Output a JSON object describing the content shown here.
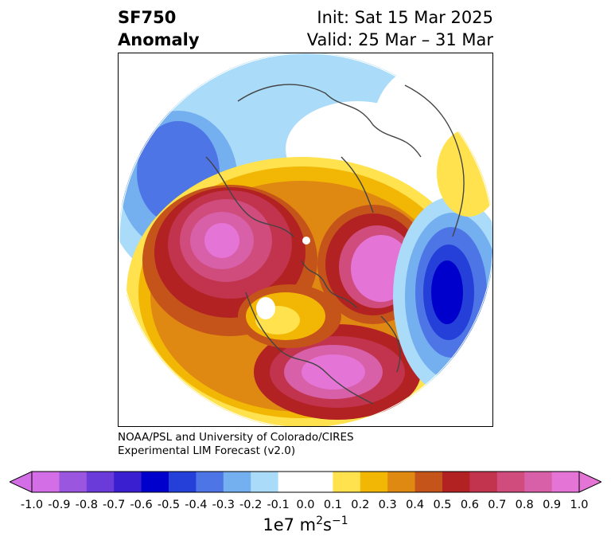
{
  "title": {
    "left_line1": "SF750",
    "left_line2": "Anomaly",
    "right_line1": "Init: Sat 15 Mar 2025",
    "right_line2": "Valid: 25 Mar – 31 Mar"
  },
  "credit": {
    "line1": "NOAA/PSL and University of Colorado/CIRES",
    "line2": "Experimental LIM Forecast (v2.0)"
  },
  "colorbar": {
    "ticks": [
      "-1.0",
      "-0.9",
      "-0.8",
      "-0.7",
      "-0.6",
      "-0.5",
      "-0.4",
      "-0.3",
      "-0.2",
      "-0.1",
      "0.0",
      "0.1",
      "0.2",
      "0.3",
      "0.4",
      "0.5",
      "0.6",
      "0.7",
      "0.8",
      "0.9",
      "1.0"
    ],
    "colors": [
      "#d36ee6",
      "#9b56e0",
      "#6a3bd8",
      "#3a1fd0",
      "#0000cc",
      "#2440d8",
      "#4e75e6",
      "#74aff0",
      "#aadbf9",
      "#ffffff",
      "#ffffff",
      "#ffe24d",
      "#f2b705",
      "#df8812",
      "#c5541a",
      "#b22222",
      "#c2334e",
      "#cf4c7c",
      "#d760a8",
      "#e474d6"
    ],
    "units_base": "1e7 m",
    "units_exp1": "2",
    "units_mid": "s",
    "units_exp2": "−1"
  }
}
